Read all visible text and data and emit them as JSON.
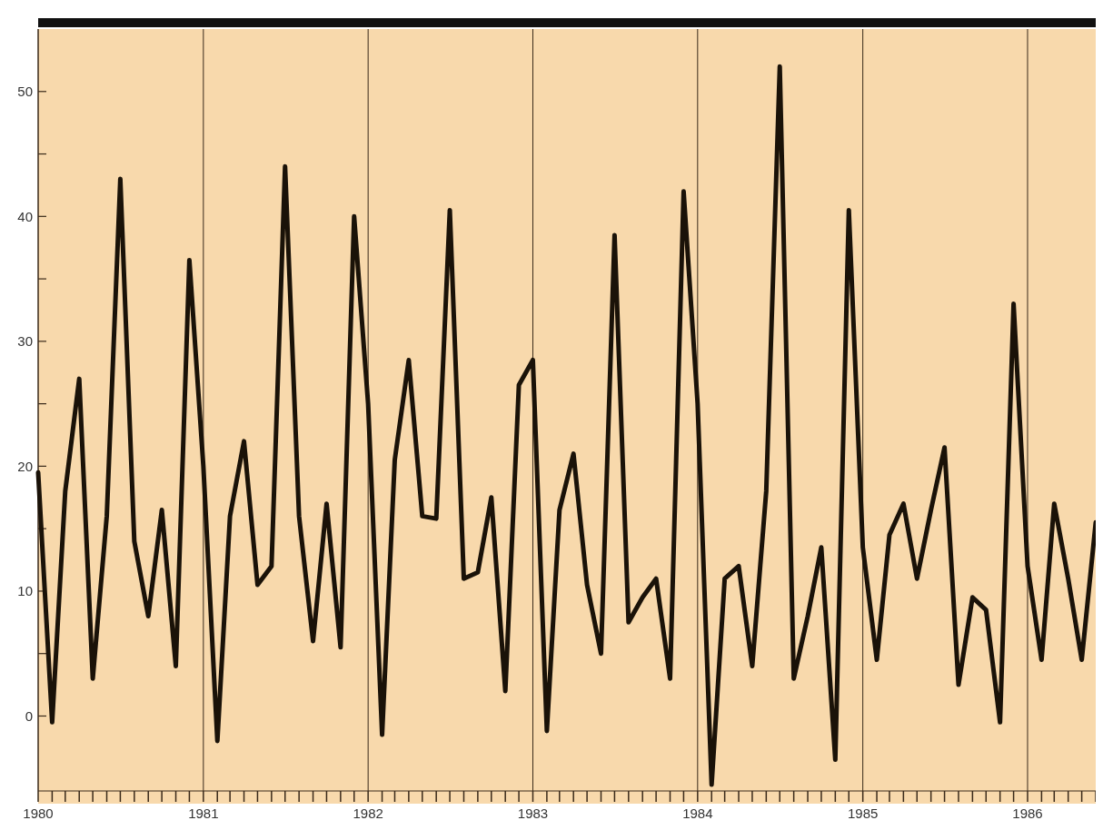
{
  "chart_data": {
    "type": "line",
    "x": [
      "1980-01",
      "1980-02",
      "1980-03",
      "1980-04",
      "1980-05",
      "1980-06",
      "1980-07",
      "1980-08",
      "1980-09",
      "1980-10",
      "1980-11",
      "1980-12",
      "1981-01",
      "1981-02",
      "1981-03",
      "1981-04",
      "1981-05",
      "1981-06",
      "1981-07",
      "1981-08",
      "1981-09",
      "1981-10",
      "1981-11",
      "1981-12",
      "1982-01",
      "1982-02",
      "1982-03",
      "1982-04",
      "1982-05",
      "1982-06",
      "1982-07",
      "1982-08",
      "1982-09",
      "1982-10",
      "1982-11",
      "1982-12",
      "1983-01",
      "1983-02",
      "1983-03",
      "1983-04",
      "1983-05",
      "1983-06",
      "1983-07",
      "1983-08",
      "1983-09",
      "1983-10",
      "1983-11",
      "1983-12",
      "1984-01",
      "1984-02",
      "1984-03",
      "1984-04",
      "1984-05",
      "1984-06",
      "1984-07",
      "1984-08",
      "1984-09",
      "1984-10",
      "1984-11",
      "1984-12",
      "1985-01",
      "1985-02",
      "1985-03",
      "1985-04",
      "1985-05",
      "1985-06",
      "1985-07",
      "1985-08",
      "1985-09",
      "1985-10",
      "1985-11",
      "1985-12",
      "1986-01",
      "1986-02",
      "1986-03",
      "1986-04",
      "1986-05",
      "1986-06"
    ],
    "series": [
      {
        "color": "#1a1208",
        "values": [
          19.5,
          -0.5,
          18,
          27,
          3,
          16,
          43,
          14,
          8,
          16.5,
          4,
          36.5,
          20,
          -2,
          16,
          22,
          10.5,
          12,
          44,
          16,
          6,
          17,
          5.5,
          40,
          25,
          -1.5,
          20.5,
          28.5,
          16,
          15.8,
          40.5,
          11,
          11.5,
          17.5,
          2,
          26.5,
          28.5,
          -1.2,
          16.5,
          21,
          10.5,
          5,
          38.5,
          7.5,
          9.5,
          11,
          3,
          42,
          25,
          -5.5,
          11,
          12,
          4,
          18,
          52,
          3,
          8,
          13.5,
          -3.5,
          40.5,
          13.5,
          4.5,
          14.5,
          17,
          11,
          16.5,
          21.5,
          2.5,
          9.5,
          8.5,
          -0.5,
          33,
          12,
          4.5,
          17,
          11,
          4.5,
          15.5
        ]
      }
    ],
    "xlim": [
      "1980-01",
      "1986-06"
    ],
    "xticks": [
      "1980",
      {
        "value": "1980-02",
        "label": null
      },
      {
        "value": "1980-03",
        "label": null
      },
      {
        "value": "1980-04",
        "label": null
      },
      {
        "value": "1980-05",
        "label": null
      },
      {
        "value": "1980-06",
        "label": null
      },
      {
        "value": "1980-07",
        "label": null
      },
      {
        "value": "1980-08",
        "label": null
      },
      {
        "value": "1980-09",
        "label": null
      },
      {
        "value": "1980-10",
        "label": null
      },
      {
        "value": "1980-11",
        "label": null
      },
      {
        "value": "1980-12",
        "label": null
      },
      "1981",
      {
        "value": "1981-02",
        "label": null
      },
      {
        "value": "1981-03",
        "label": null
      },
      {
        "value": "1981-04",
        "label": null
      },
      {
        "value": "1981-05",
        "label": null
      },
      {
        "value": "1981-06",
        "label": null
      },
      {
        "value": "1981-07",
        "label": null
      },
      {
        "value": "1981-08",
        "label": null
      },
      {
        "value": "1981-09",
        "label": null
      },
      {
        "value": "1981-10",
        "label": null
      },
      {
        "value": "1981-11",
        "label": null
      },
      {
        "value": "1981-12",
        "label": null
      },
      "1982",
      {
        "value": "1982-02",
        "label": null
      },
      {
        "value": "1982-03",
        "label": null
      },
      {
        "value": "1982-04",
        "label": null
      },
      {
        "value": "1982-05",
        "label": null
      },
      {
        "value": "1982-06",
        "label": null
      },
      {
        "value": "1982-07",
        "label": null
      },
      {
        "value": "1982-08",
        "label": null
      },
      {
        "value": "1982-09",
        "label": null
      },
      {
        "value": "1982-10",
        "label": null
      },
      {
        "value": "1982-11",
        "label": null
      },
      {
        "value": "1982-12",
        "label": null
      },
      "1983",
      {
        "value": "1983-02",
        "label": null
      },
      {
        "value": "1983-03",
        "label": null
      },
      {
        "value": "1983-04",
        "label": null
      },
      {
        "value": "1983-05",
        "label": null
      },
      {
        "value": "1983-06",
        "label": null
      },
      {
        "value": "1983-07",
        "label": null
      },
      {
        "value": "1983-08",
        "label": null
      },
      {
        "value": "1983-09",
        "label": null
      },
      {
        "value": "1983-10",
        "label": null
      },
      {
        "value": "1983-11",
        "label": null
      },
      {
        "value": "1983-12",
        "label": null
      },
      "1984",
      {
        "value": "1984-02",
        "label": null
      },
      {
        "value": "1984-03",
        "label": null
      },
      {
        "value": "1984-04",
        "label": null
      },
      {
        "value": "1984-05",
        "label": null
      },
      {
        "value": "1984-06",
        "label": null
      },
      {
        "value": "1984-07",
        "label": null
      },
      {
        "value": "1984-08",
        "label": null
      },
      {
        "value": "1984-09",
        "label": null
      },
      {
        "value": "1984-10",
        "label": null
      },
      {
        "value": "1984-11",
        "label": null
      },
      {
        "value": "1984-12",
        "label": null
      },
      "1985",
      {
        "value": "1985-02",
        "label": null
      },
      {
        "value": "1985-03",
        "label": null
      },
      {
        "value": "1985-04",
        "label": null
      },
      {
        "value": "1985-05",
        "label": null
      },
      {
        "value": "1985-06",
        "label": null
      },
      {
        "value": "1985-07",
        "label": null
      },
      {
        "value": "1985-08",
        "label": null
      },
      {
        "value": "1985-09",
        "label": null
      },
      {
        "value": "1985-10",
        "label": null
      },
      {
        "value": "1985-11",
        "label": null
      },
      {
        "value": "1985-12",
        "label": null
      },
      "1986",
      {
        "value": "1986-02",
        "label": null
      },
      {
        "value": "1986-03",
        "label": null
      },
      {
        "value": "1986-04",
        "label": null
      },
      {
        "value": "1986-05",
        "label": null
      },
      {
        "value": "1986-06",
        "label": null
      }
    ],
    "ylim": [
      -6,
      55
    ],
    "yticks": [
      0,
      {
        "value": 5,
        "label": null
      },
      10,
      {
        "value": 15,
        "label": null
      },
      20,
      {
        "value": 25,
        "label": null
      },
      30,
      {
        "value": 35,
        "label": null
      },
      40,
      {
        "value": 45,
        "label": null
      },
      50
    ],
    "grid": "x"
  }
}
